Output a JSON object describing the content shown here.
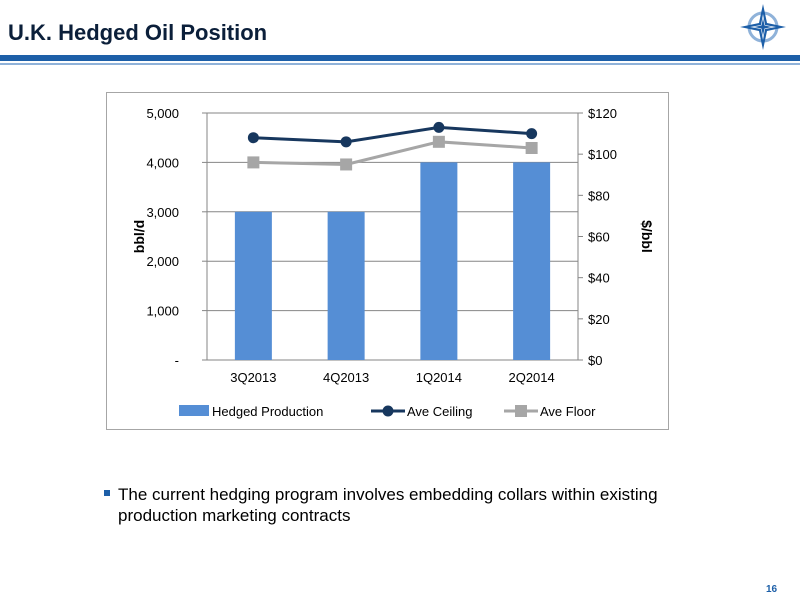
{
  "slide": {
    "title": "U.K. Hedged Oil Position",
    "bullet": "The current hedging program involves embedding collars within existing production marketing contracts",
    "page_number": "16"
  },
  "logo": {
    "icon": "compass-star-logo-icon",
    "colors": [
      "#1d5fa8",
      "#8fb2d9"
    ]
  },
  "colors": {
    "accent": "#1d5fa8",
    "accent_light": "#8fb2d9",
    "bar": "#558ed5",
    "ceiling": "#17375e",
    "floor": "#a6a6a6",
    "title": "#0b1f3a"
  },
  "chart_data": {
    "type": "bar",
    "categories": [
      "3Q2013",
      "4Q2013",
      "1Q2014",
      "2Q2014"
    ],
    "series": [
      {
        "name": "Hedged Production",
        "type": "bar",
        "axis": "left",
        "values": [
          3000,
          3000,
          4000,
          4000
        ]
      },
      {
        "name": "Ave Ceiling",
        "type": "line",
        "axis": "right",
        "values": [
          108,
          106,
          113,
          110
        ]
      },
      {
        "name": "Ave Floor",
        "type": "line",
        "axis": "right",
        "values": [
          96,
          95,
          106,
          103
        ]
      }
    ],
    "ylabel": "bbl/d",
    "y2label": "$/bbl",
    "ylim": [
      0,
      5000
    ],
    "y2lim": [
      0,
      120
    ],
    "yticks": [
      {
        "value": 0,
        "label": "-"
      },
      {
        "value": 1000,
        "label": "1,000"
      },
      {
        "value": 2000,
        "label": "2,000"
      },
      {
        "value": 3000,
        "label": "3,000"
      },
      {
        "value": 4000,
        "label": "4,000"
      },
      {
        "value": 5000,
        "label": "5,000"
      }
    ],
    "y2ticks": [
      {
        "value": 0,
        "label": "$0"
      },
      {
        "value": 20,
        "label": "$20"
      },
      {
        "value": 40,
        "label": "$40"
      },
      {
        "value": 60,
        "label": "$60"
      },
      {
        "value": 80,
        "label": "$80"
      },
      {
        "value": 100,
        "label": "$100"
      },
      {
        "value": 120,
        "label": "$120"
      }
    ],
    "grid": true,
    "legend_position": "bottom"
  }
}
